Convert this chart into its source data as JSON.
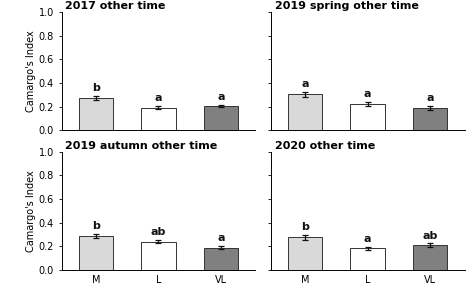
{
  "subplots": [
    {
      "title": "2017 other time",
      "bars": [
        {
          "label": "M",
          "value": 0.275,
          "error": 0.018,
          "color": "#d9d9d9",
          "sig": "b"
        },
        {
          "label": "L",
          "value": 0.19,
          "error": 0.012,
          "color": "#ffffff",
          "sig": "a"
        },
        {
          "label": "VL",
          "value": 0.205,
          "error": 0.01,
          "color": "#808080",
          "sig": "a"
        }
      ],
      "show_ylabel": true,
      "show_xlabel": false,
      "row": 0,
      "col": 0
    },
    {
      "title": "2019 spring other time",
      "bars": [
        {
          "label": "M",
          "value": 0.305,
          "error": 0.022,
          "color": "#d9d9d9",
          "sig": "a"
        },
        {
          "label": "L",
          "value": 0.225,
          "error": 0.018,
          "color": "#ffffff",
          "sig": "a"
        },
        {
          "label": "VL",
          "value": 0.19,
          "error": 0.014,
          "color": "#808080",
          "sig": "a"
        }
      ],
      "show_ylabel": false,
      "show_xlabel": false,
      "row": 0,
      "col": 1
    },
    {
      "title": "2019 autumn other time",
      "bars": [
        {
          "label": "M",
          "value": 0.285,
          "error": 0.018,
          "color": "#d9d9d9",
          "sig": "b"
        },
        {
          "label": "L",
          "value": 0.24,
          "error": 0.012,
          "color": "#ffffff",
          "sig": "ab"
        },
        {
          "label": "VL",
          "value": 0.19,
          "error": 0.013,
          "color": "#808080",
          "sig": "a"
        }
      ],
      "show_ylabel": true,
      "show_xlabel": true,
      "row": 1,
      "col": 0
    },
    {
      "title": "2020 other time",
      "bars": [
        {
          "label": "M",
          "value": 0.275,
          "error": 0.018,
          "color": "#d9d9d9",
          "sig": "b"
        },
        {
          "label": "L",
          "value": 0.185,
          "error": 0.012,
          "color": "#ffffff",
          "sig": "a"
        },
        {
          "label": "VL",
          "value": 0.21,
          "error": 0.014,
          "color": "#808080",
          "sig": "ab"
        }
      ],
      "show_ylabel": false,
      "show_xlabel": true,
      "row": 1,
      "col": 1
    }
  ],
  "ylim": [
    0.0,
    1.0
  ],
  "yticks": [
    0.0,
    0.2,
    0.4,
    0.6,
    0.8,
    1.0
  ],
  "ylabel": "Camargo's Index",
  "bar_width": 0.55,
  "bar_edgecolor": "#333333",
  "sig_fontsize": 8,
  "title_fontsize": 8,
  "ylabel_fontsize": 7,
  "tick_fontsize": 7,
  "background_color": "#ffffff"
}
